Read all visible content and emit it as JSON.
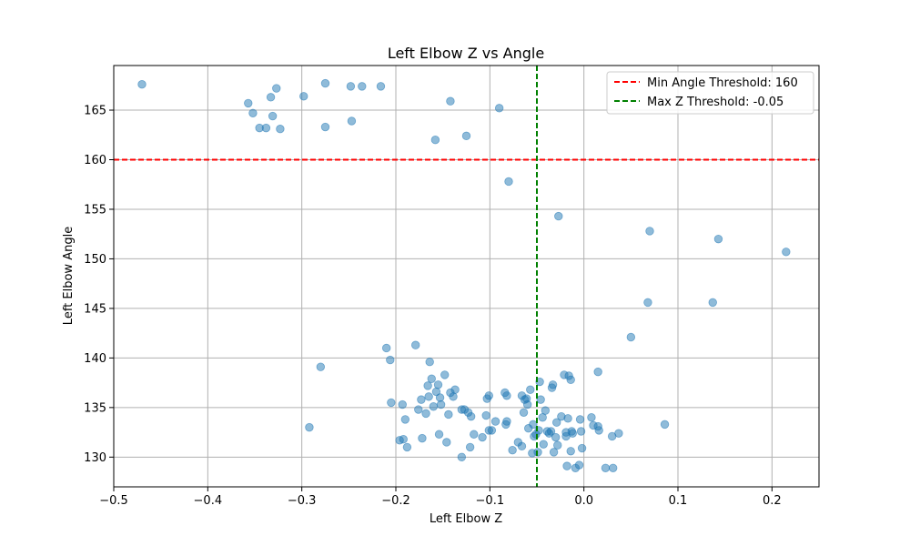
{
  "chart_data": {
    "type": "scatter",
    "title": "Left Elbow Z vs Angle",
    "xlabel": "Left Elbow Z",
    "ylabel": "Left Elbow Angle",
    "xlim": [
      -0.5,
      0.25
    ],
    "ylim": [
      127,
      169.5
    ],
    "x_ticks": [
      -0.5,
      -0.4,
      -0.3,
      -0.2,
      -0.1,
      0.0,
      0.1,
      0.2
    ],
    "x_tick_labels": [
      "−0.5",
      "−0.4",
      "−0.3",
      "−0.2",
      "−0.1",
      "0.0",
      "0.1",
      "0.2"
    ],
    "y_ticks": [
      130,
      135,
      140,
      145,
      150,
      155,
      160,
      165
    ],
    "y_tick_labels": [
      "130",
      "135",
      "140",
      "145",
      "150",
      "155",
      "160",
      "165"
    ],
    "grid": true,
    "legend_position": "top-right",
    "point_color": "#1f77b4",
    "thresholds": [
      {
        "name": "Min Angle Threshold: 160",
        "orientation": "horizontal",
        "value": 160,
        "color": "#ff0000"
      },
      {
        "name": "Max Z Threshold: -0.05",
        "orientation": "vertical",
        "value": -0.05,
        "color": "#008000"
      }
    ],
    "points": [
      [
        -0.47,
        167.6
      ],
      [
        -0.357,
        165.7
      ],
      [
        -0.352,
        164.7
      ],
      [
        -0.345,
        163.2
      ],
      [
        -0.338,
        163.2
      ],
      [
        -0.333,
        166.3
      ],
      [
        -0.331,
        164.4
      ],
      [
        -0.327,
        167.2
      ],
      [
        -0.323,
        163.1
      ],
      [
        -0.298,
        166.4
      ],
      [
        -0.275,
        167.7
      ],
      [
        -0.275,
        163.3
      ],
      [
        -0.248,
        167.4
      ],
      [
        -0.247,
        163.9
      ],
      [
        -0.236,
        167.4
      ],
      [
        -0.216,
        167.4
      ],
      [
        -0.142,
        165.9
      ],
      [
        -0.158,
        162.0
      ],
      [
        -0.125,
        162.4
      ],
      [
        -0.09,
        165.2
      ],
      [
        -0.08,
        157.8
      ],
      [
        -0.027,
        154.3
      ],
      [
        0.07,
        152.8
      ],
      [
        0.143,
        152.0
      ],
      [
        0.215,
        150.7
      ],
      [
        0.068,
        145.6
      ],
      [
        0.137,
        145.6
      ],
      [
        0.05,
        142.1
      ],
      [
        -0.28,
        139.1
      ],
      [
        -0.292,
        133.0
      ],
      [
        -0.21,
        141.0
      ],
      [
        -0.206,
        139.8
      ],
      [
        -0.205,
        135.5
      ],
      [
        -0.193,
        135.3
      ],
      [
        -0.19,
        133.8
      ],
      [
        -0.196,
        131.7
      ],
      [
        -0.192,
        131.8
      ],
      [
        -0.188,
        131.0
      ],
      [
        -0.179,
        141.3
      ],
      [
        -0.176,
        134.8
      ],
      [
        -0.173,
        135.8
      ],
      [
        -0.172,
        131.9
      ],
      [
        -0.168,
        134.4
      ],
      [
        -0.166,
        137.2
      ],
      [
        -0.165,
        136.1
      ],
      [
        -0.164,
        139.6
      ],
      [
        -0.162,
        137.9
      ],
      [
        -0.16,
        135.1
      ],
      [
        -0.157,
        136.6
      ],
      [
        -0.155,
        137.3
      ],
      [
        -0.153,
        136.0
      ],
      [
        -0.152,
        135.3
      ],
      [
        -0.154,
        132.3
      ],
      [
        -0.148,
        138.3
      ],
      [
        -0.146,
        131.5
      ],
      [
        -0.144,
        134.3
      ],
      [
        -0.142,
        136.5
      ],
      [
        -0.139,
        136.1
      ],
      [
        -0.137,
        136.8
      ],
      [
        -0.13,
        134.8
      ],
      [
        -0.127,
        134.8
      ],
      [
        -0.13,
        130.0
      ],
      [
        -0.123,
        134.5
      ],
      [
        -0.12,
        134.1
      ],
      [
        -0.121,
        131.0
      ],
      [
        -0.117,
        132.3
      ],
      [
        -0.108,
        132.0
      ],
      [
        -0.104,
        134.2
      ],
      [
        -0.103,
        135.9
      ],
      [
        -0.101,
        136.2
      ],
      [
        -0.101,
        132.7
      ],
      [
        -0.098,
        132.7
      ],
      [
        -0.094,
        133.6
      ],
      [
        -0.084,
        136.5
      ],
      [
        -0.082,
        136.2
      ],
      [
        -0.083,
        133.3
      ],
      [
        -0.082,
        133.6
      ],
      [
        -0.076,
        130.7
      ],
      [
        -0.07,
        131.5
      ],
      [
        -0.066,
        136.2
      ],
      [
        -0.064,
        134.5
      ],
      [
        -0.063,
        135.8
      ],
      [
        -0.061,
        135.9
      ],
      [
        -0.06,
        135.3
      ],
      [
        -0.066,
        131.1
      ],
      [
        -0.059,
        132.9
      ],
      [
        -0.057,
        136.8
      ],
      [
        -0.055,
        130.4
      ],
      [
        -0.054,
        133.3
      ],
      [
        -0.053,
        132.1
      ],
      [
        -0.051,
        132.3
      ],
      [
        -0.049,
        130.5
      ],
      [
        -0.048,
        132.7
      ],
      [
        -0.047,
        137.6
      ],
      [
        -0.046,
        135.8
      ],
      [
        -0.044,
        134.0
      ],
      [
        -0.043,
        131.3
      ],
      [
        -0.041,
        134.7
      ],
      [
        -0.039,
        132.6
      ],
      [
        -0.037,
        132.4
      ],
      [
        -0.035,
        132.6
      ],
      [
        -0.034,
        137.0
      ],
      [
        -0.033,
        137.3
      ],
      [
        -0.032,
        130.5
      ],
      [
        -0.03,
        132.0
      ],
      [
        -0.029,
        133.5
      ],
      [
        -0.028,
        131.2
      ],
      [
        -0.024,
        134.1
      ],
      [
        -0.021,
        138.3
      ],
      [
        -0.019,
        132.1
      ],
      [
        -0.019,
        132.5
      ],
      [
        -0.018,
        129.1
      ],
      [
        -0.017,
        133.9
      ],
      [
        -0.016,
        138.2
      ],
      [
        -0.014,
        137.8
      ],
      [
        -0.014,
        130.6
      ],
      [
        -0.013,
        132.6
      ],
      [
        -0.012,
        132.4
      ],
      [
        -0.009,
        128.9
      ],
      [
        -0.005,
        129.2
      ],
      [
        -0.004,
        133.8
      ],
      [
        -0.003,
        132.6
      ],
      [
        -0.002,
        130.9
      ],
      [
        0.008,
        134.0
      ],
      [
        0.01,
        133.2
      ],
      [
        0.015,
        138.6
      ],
      [
        0.015,
        133.1
      ],
      [
        0.016,
        132.7
      ],
      [
        0.023,
        128.9
      ],
      [
        0.03,
        132.1
      ],
      [
        0.031,
        128.9
      ],
      [
        0.037,
        132.4
      ],
      [
        0.086,
        133.3
      ]
    ]
  }
}
